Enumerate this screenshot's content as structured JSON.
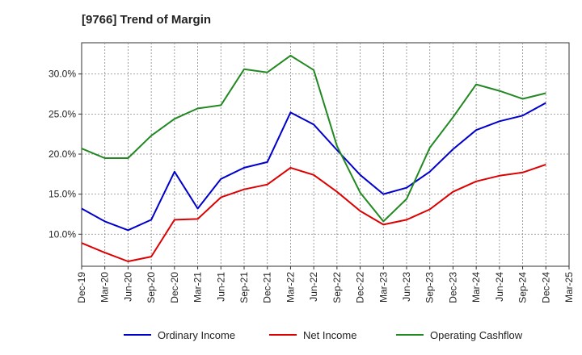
{
  "title": "[9766]  Trend of Margin",
  "chart_data": {
    "type": "line",
    "title": "[9766]  Trend of Margin",
    "xlabel": "",
    "ylabel": "",
    "x": [
      "Dec-19",
      "Mar-20",
      "Jun-20",
      "Sep-20",
      "Dec-20",
      "Mar-21",
      "Jun-21",
      "Sep-21",
      "Dec-21",
      "Mar-22",
      "Jun-22",
      "Sep-22",
      "Dec-22",
      "Mar-23",
      "Jun-23",
      "Sep-23",
      "Dec-23",
      "Mar-24",
      "Jun-24",
      "Sep-24",
      "Dec-24",
      "Mar-25"
    ],
    "ylim": [
      6.0,
      33.9
    ],
    "yticks": [
      10.0,
      15.0,
      20.0,
      25.0,
      30.0
    ],
    "ytick_labels": [
      "10.0%",
      "15.0%",
      "20.0%",
      "25.0%",
      "30.0%"
    ],
    "grid": true,
    "legend_position": "bottom",
    "series": [
      {
        "name": "Ordinary Income",
        "color": "#0000cc",
        "values": [
          13.2,
          11.6,
          10.5,
          11.8,
          17.8,
          13.2,
          16.9,
          18.3,
          19.0,
          25.2,
          23.7,
          20.5,
          17.4,
          15.0,
          15.8,
          17.8,
          20.6,
          23.0,
          24.1,
          24.8,
          26.4,
          null
        ]
      },
      {
        "name": "Net Income",
        "color": "#dd0000",
        "values": [
          8.9,
          7.7,
          6.6,
          7.2,
          11.8,
          11.9,
          14.6,
          15.6,
          16.2,
          18.3,
          17.4,
          15.3,
          12.9,
          11.2,
          11.8,
          13.1,
          15.3,
          16.6,
          17.3,
          17.7,
          18.7,
          null
        ]
      },
      {
        "name": "Operating Cashflow",
        "color": "#228822",
        "values": [
          20.7,
          19.5,
          19.5,
          22.3,
          24.4,
          25.7,
          26.1,
          30.6,
          30.2,
          32.3,
          30.5,
          21.0,
          15.2,
          11.6,
          14.4,
          20.8,
          24.6,
          28.7,
          27.9,
          26.9,
          27.6,
          null
        ]
      }
    ]
  }
}
